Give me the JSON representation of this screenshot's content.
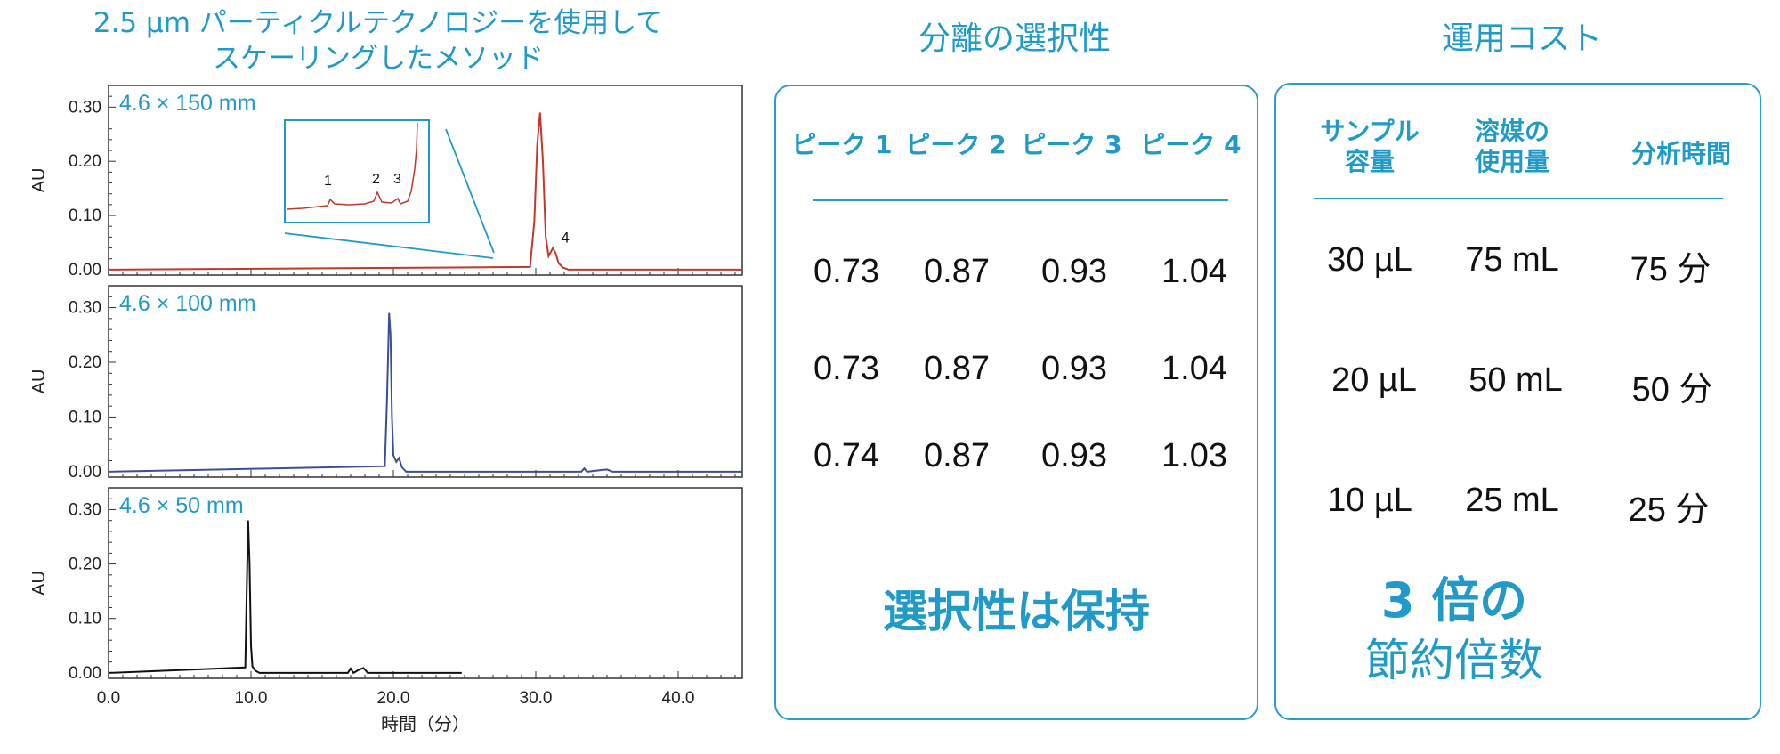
{
  "left_title": {
    "line1": "2.5 µm パーティクルテクノロジーを使用して",
    "line2": "スケーリングしたメソッド"
  },
  "chart_data": [
    {
      "type": "line",
      "label": "4.6 × 150 mm",
      "ylabel": "AU",
      "xlim": [
        0,
        44.5
      ],
      "ylim": [
        -0.01,
        0.34
      ],
      "yticks": [
        "0.00",
        "0.10",
        "0.20",
        "0.30"
      ],
      "color": "#c0392b",
      "series": [
        {
          "x": [
            0,
            29.6,
            29.9,
            30.1,
            30.3,
            30.5,
            30.7,
            30.9,
            31.2,
            31.4,
            31.6,
            31.9,
            32.3,
            44.5
          ],
          "y": [
            0.0,
            0.005,
            0.09,
            0.23,
            0.29,
            0.2,
            0.06,
            0.025,
            0.04,
            0.03,
            0.012,
            0.004,
            0.0,
            0.0
          ]
        }
      ],
      "peak_labels": [
        {
          "text": "4",
          "x": 31.4,
          "y": 0.05
        }
      ],
      "inset": {
        "labels": [
          "1",
          "2",
          "3"
        ]
      }
    },
    {
      "type": "line",
      "label": "4.6 × 100 mm",
      "ylabel": "AU",
      "xlim": [
        0,
        44.5
      ],
      "ylim": [
        -0.01,
        0.34
      ],
      "yticks": [
        "0.00",
        "0.10",
        "0.20",
        "0.30"
      ],
      "color": "#3a4f9a",
      "series": [
        {
          "x": [
            0,
            19.4,
            19.55,
            19.7,
            19.8,
            19.9,
            20.0,
            20.2,
            20.4,
            20.6,
            20.9,
            33.2,
            33.4,
            33.6,
            34.6,
            35.0,
            35.4,
            44.5
          ],
          "y": [
            0.0,
            0.01,
            0.13,
            0.29,
            0.25,
            0.1,
            0.03,
            0.018,
            0.025,
            0.008,
            0.0,
            0.0,
            0.006,
            0.0,
            0.003,
            0.004,
            0.0,
            0.0
          ]
        }
      ]
    },
    {
      "type": "line",
      "label": "4.6 × 50 mm",
      "ylabel": "AU",
      "xlabel": "時間（分）",
      "xlim": [
        0,
        44.5
      ],
      "ylim": [
        -0.01,
        0.34
      ],
      "yticks": [
        "0.00",
        "0.10",
        "0.20",
        "0.30"
      ],
      "xticks": [
        "0.0",
        "10.0",
        "20.0",
        "30.0",
        "40.0"
      ],
      "color": "#111111",
      "series": [
        {
          "x": [
            0,
            9.6,
            9.7,
            9.8,
            9.9,
            10.0,
            10.1,
            10.3,
            10.6,
            16.8,
            17.0,
            17.2,
            17.6,
            17.9,
            18.2,
            18.6,
            24.8
          ],
          "y": [
            0.0,
            0.01,
            0.15,
            0.28,
            0.2,
            0.05,
            0.012,
            0.004,
            0.0,
            0.0,
            0.008,
            0.0,
            0.006,
            0.009,
            0.0,
            0.0,
            0.0
          ]
        }
      ]
    }
  ],
  "selectivity": {
    "heading": "分離の選択性",
    "headers": [
      "ピーク 1",
      "ピーク 2",
      "ピーク 3",
      "ピーク 4"
    ],
    "rows": [
      [
        "0.73",
        "0.87",
        "0.93",
        "1.04"
      ],
      [
        "0.73",
        "0.87",
        "0.93",
        "1.04"
      ],
      [
        "0.74",
        "0.87",
        "0.93",
        "1.03"
      ]
    ],
    "conclusion": "選択性は保持"
  },
  "cost": {
    "heading": "運用コスト",
    "headers": [
      {
        "line1": "サンプル",
        "line2": "容量"
      },
      {
        "line1": "溶媒の",
        "line2": "使用量"
      },
      {
        "line1": "分析時間",
        "line2": ""
      }
    ],
    "rows": [
      [
        "30 µL",
        "75 mL",
        "75 分"
      ],
      [
        "20 µL",
        "50 mL",
        "50 分"
      ],
      [
        "10 µL",
        "25 mL",
        "25 分"
      ]
    ],
    "conclusion_line1": "3 倍の",
    "conclusion_line2": "節約倍数"
  },
  "colors": {
    "accent": "#1f9ac9"
  }
}
